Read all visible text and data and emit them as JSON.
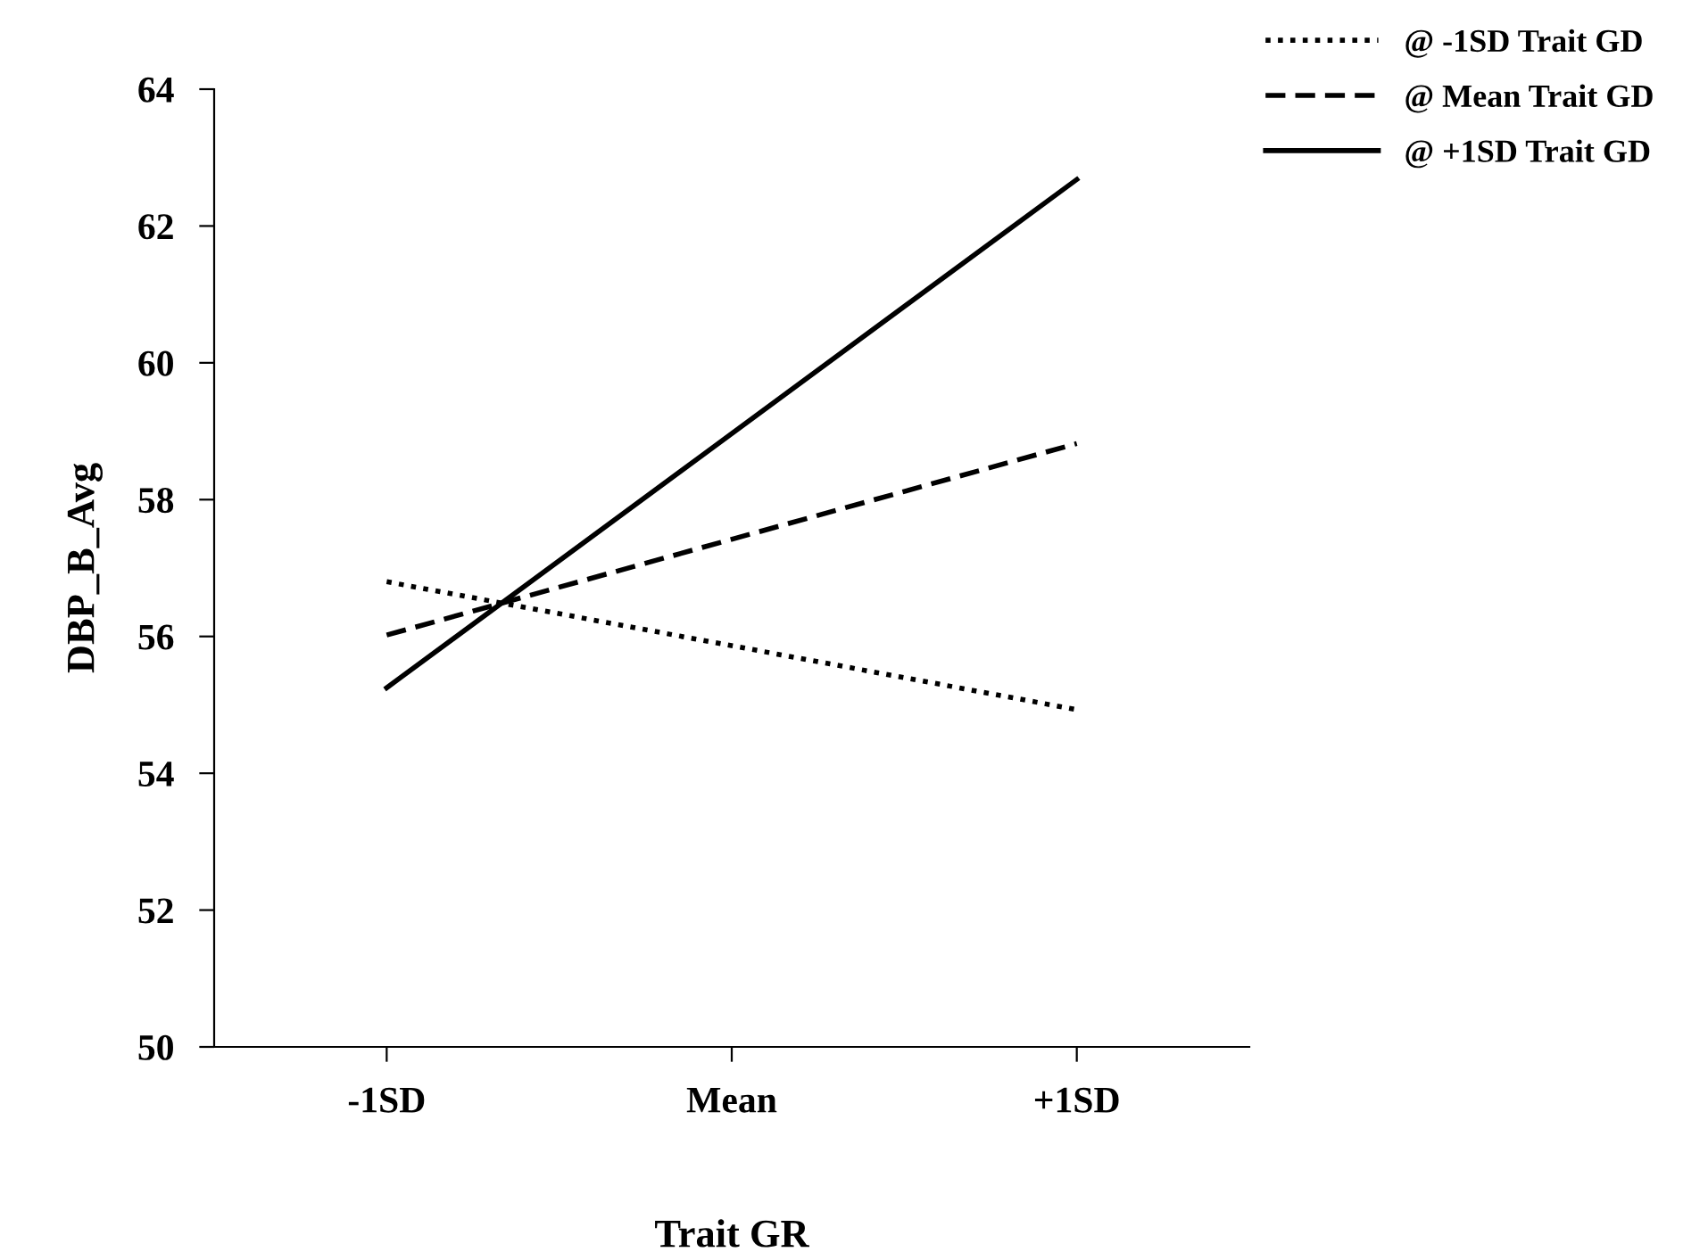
{
  "chart_data": {
    "type": "line",
    "xlabel": "Trait GR",
    "ylabel": "DBP_B_Avg",
    "categories": [
      "-1SD",
      "Mean",
      "+1SD"
    ],
    "series": [
      {
        "name": "@ -1SD Trait GD",
        "color": "#000000",
        "values": [
          56.8,
          null,
          54.93
        ],
        "line_style": "dotted"
      },
      {
        "name": "@ Mean Trait GD",
        "color": "#000000",
        "values": [
          56.02,
          null,
          58.82
        ],
        "line_style": "dashed"
      },
      {
        "name": "@ +1SD Trait GD",
        "color": "#000000",
        "values": [
          55.25,
          null,
          62.68
        ],
        "line_style": "solid"
      }
    ],
    "ylim": [
      50,
      64
    ],
    "yticks": [
      50,
      52,
      54,
      56,
      58,
      60,
      62,
      64
    ],
    "grid": false,
    "legend": "top right",
    "marker": "none"
  }
}
